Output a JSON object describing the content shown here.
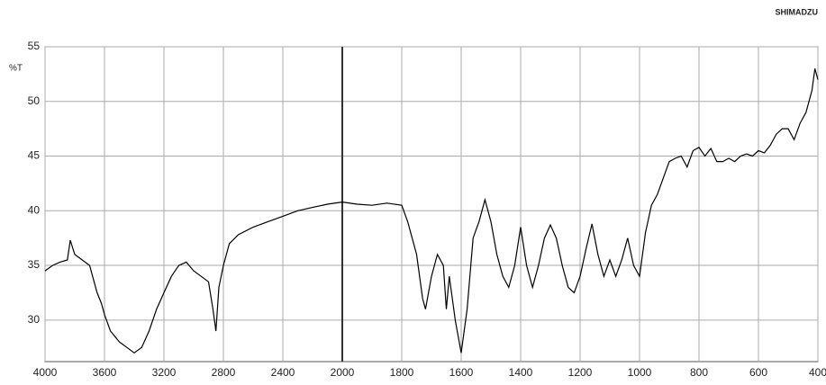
{
  "chart_data": {
    "type": "line",
    "brand": "SHIMADZU",
    "y_label": "%T",
    "x": [
      4000,
      3950,
      3900,
      3850,
      3830,
      3800,
      3750,
      3700,
      3680,
      3650,
      3620,
      3600,
      3560,
      3500,
      3450,
      3400,
      3350,
      3300,
      3250,
      3200,
      3150,
      3100,
      3050,
      3000,
      2950,
      2900,
      2870,
      2850,
      2830,
      2800,
      2760,
      2700,
      2600,
      2500,
      2400,
      2300,
      2200,
      2100,
      2000,
      1950,
      1900,
      1850,
      1800,
      1780,
      1750,
      1730,
      1720,
      1700,
      1680,
      1660,
      1650,
      1640,
      1620,
      1600,
      1580,
      1560,
      1540,
      1520,
      1500,
      1480,
      1460,
      1440,
      1420,
      1400,
      1380,
      1360,
      1340,
      1320,
      1300,
      1280,
      1260,
      1240,
      1220,
      1200,
      1180,
      1160,
      1140,
      1120,
      1100,
      1080,
      1060,
      1040,
      1020,
      1000,
      980,
      960,
      940,
      920,
      900,
      880,
      860,
      840,
      820,
      800,
      780,
      760,
      740,
      720,
      700,
      680,
      660,
      640,
      620,
      600,
      580,
      560,
      540,
      520,
      500,
      480,
      460,
      440,
      420,
      410,
      400
    ],
    "y": [
      34.5,
      35,
      35.3,
      35.5,
      37.3,
      36,
      35.5,
      35,
      34,
      32.5,
      31.5,
      30.5,
      29,
      28,
      27.5,
      27,
      27.5,
      29,
      31,
      32.5,
      34,
      35,
      35.3,
      34.5,
      34,
      33.5,
      31,
      29,
      33,
      35,
      37,
      37.8,
      38.5,
      39,
      39.5,
      40,
      40.3,
      40.6,
      40.8,
      40.6,
      40.5,
      40.7,
      40.5,
      39,
      36,
      32,
      31,
      34,
      36,
      35,
      31,
      34,
      30,
      27,
      31,
      37.5,
      39,
      41,
      39,
      36,
      34,
      33,
      35,
      38.5,
      35,
      33,
      35,
      37.5,
      38.7,
      37.5,
      35,
      33,
      32.5,
      34,
      36.5,
      38.8,
      36,
      34,
      35.5,
      34,
      35.5,
      37.5,
      35,
      34,
      38,
      40.5,
      41.5,
      43,
      44.5,
      44.8,
      45,
      44,
      45.5,
      45.8,
      45,
      45.7,
      44.5,
      44.5,
      44.8,
      44.5,
      45,
      45.2,
      45,
      45.5,
      45.3,
      46,
      47,
      47.5,
      47.5,
      46.5,
      48,
      49,
      51,
      53,
      52
    ],
    "color": "#000000",
    "xlim": [
      4000,
      400
    ],
    "x_break": 2000,
    "xticks": [
      4000,
      3600,
      3200,
      2800,
      2400,
      2000,
      1800,
      1600,
      1400,
      1200,
      1000,
      800,
      600,
      400
    ],
    "ylim": [
      26.2,
      55
    ],
    "yticks": [
      30,
      35,
      40,
      45,
      50,
      55
    ],
    "grid": true
  }
}
